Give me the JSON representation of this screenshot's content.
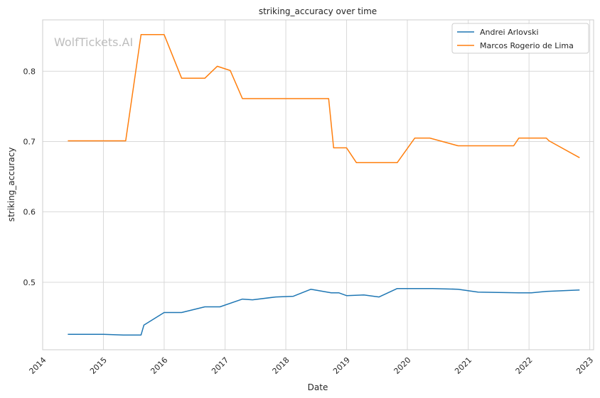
{
  "chart_data": {
    "type": "line",
    "title": "striking_accuracy over time",
    "xlabel": "Date",
    "ylabel": "striking_accuracy",
    "watermark": "WolfTickets.AI",
    "x_ticks": [
      "2014",
      "2015",
      "2016",
      "2017",
      "2018",
      "2019",
      "2020",
      "2021",
      "2022",
      "2023"
    ],
    "y_ticks": [
      "0.5",
      "0.6",
      "0.7",
      "0.8"
    ],
    "xlim": [
      "2014-01-01",
      "2023-01-24"
    ],
    "ylim": [
      0.404,
      0.873
    ],
    "grid": true,
    "legend_position": "top-right",
    "series": [
      {
        "name": "Andrei Arlovski",
        "color": "#1f77b4",
        "points": [
          [
            "2014-06-01",
            0.426
          ],
          [
            "2015-01-01",
            0.426
          ],
          [
            "2015-05-01",
            0.425
          ],
          [
            "2015-08-15",
            0.425
          ],
          [
            "2015-09-01",
            0.439
          ],
          [
            "2016-01-01",
            0.457
          ],
          [
            "2016-04-15",
            0.457
          ],
          [
            "2016-09-01",
            0.465
          ],
          [
            "2016-12-01",
            0.465
          ],
          [
            "2017-04-15",
            0.476
          ],
          [
            "2017-06-15",
            0.475
          ],
          [
            "2017-11-01",
            0.479
          ],
          [
            "2018-02-15",
            0.48
          ],
          [
            "2018-06-01",
            0.49
          ],
          [
            "2018-10-01",
            0.485
          ],
          [
            "2018-11-15",
            0.485
          ],
          [
            "2019-01-01",
            0.481
          ],
          [
            "2019-04-15",
            0.482
          ],
          [
            "2019-07-15",
            0.479
          ],
          [
            "2019-11-01",
            0.491
          ],
          [
            "2020-06-01",
            0.491
          ],
          [
            "2020-11-01",
            0.49
          ],
          [
            "2021-03-01",
            0.486
          ],
          [
            "2021-11-01",
            0.485
          ],
          [
            "2022-01-15",
            0.485
          ],
          [
            "2022-04-15",
            0.487
          ],
          [
            "2022-11-01",
            0.489
          ]
        ]
      },
      {
        "name": "Marcos Rogerio de Lima",
        "color": "#ff7f0e",
        "points": [
          [
            "2014-06-01",
            0.701
          ],
          [
            "2015-05-15",
            0.701
          ],
          [
            "2015-08-15",
            0.852
          ],
          [
            "2016-01-01",
            0.852
          ],
          [
            "2016-04-15",
            0.79
          ],
          [
            "2016-09-01",
            0.79
          ],
          [
            "2016-11-15",
            0.807
          ],
          [
            "2017-02-01",
            0.801
          ],
          [
            "2017-04-15",
            0.761
          ],
          [
            "2018-09-15",
            0.761
          ],
          [
            "2018-10-15",
            0.691
          ],
          [
            "2019-01-01",
            0.691
          ],
          [
            "2019-03-01",
            0.67
          ],
          [
            "2019-11-01",
            0.67
          ],
          [
            "2020-02-15",
            0.705
          ],
          [
            "2020-05-15",
            0.705
          ],
          [
            "2020-11-01",
            0.694
          ],
          [
            "2021-10-01",
            0.694
          ],
          [
            "2021-11-01",
            0.705
          ],
          [
            "2022-04-15",
            0.705
          ],
          [
            "2022-05-01",
            0.701
          ],
          [
            "2022-11-01",
            0.677
          ]
        ]
      }
    ]
  }
}
